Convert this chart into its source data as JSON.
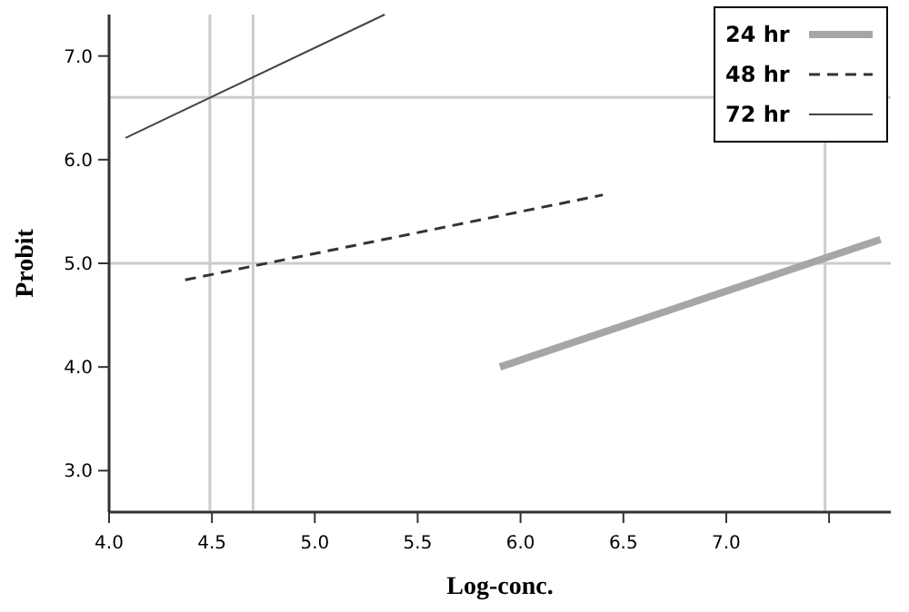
{
  "chart_data": {
    "type": "line",
    "xlabel": "Log-conc.",
    "ylabel": "Probit",
    "xlim": [
      4.0,
      7.8
    ],
    "xticks": [
      {
        "value": 4,
        "label": "4.0"
      },
      4.5,
      {
        "value": 5,
        "label": "5.0"
      },
      5.5,
      {
        "value": 6,
        "label": "6.0"
      },
      6.5,
      {
        "value": 7,
        "label": "7.0"
      },
      {
        "value": 7.5,
        "label": null
      }
    ],
    "ylim": [
      2.6,
      7.4
    ],
    "yticks": [
      {
        "value": 3,
        "label": "3.0"
      },
      {
        "value": 4,
        "label": "4.0"
      },
      {
        "value": 5,
        "label": "5.0"
      },
      {
        "value": 6,
        "label": "6.0"
      },
      {
        "value": 7,
        "label": "7.0"
      }
    ],
    "series": [
      {
        "name": "24 hr",
        "color": "#a6a6a6",
        "line_style": "solid",
        "x": [
          5.9,
          7.75
        ],
        "values": [
          4.0,
          5.23
        ]
      },
      {
        "name": "48 hr",
        "color": "#333333",
        "line_style": "dashed",
        "x": [
          4.37,
          6.4
        ],
        "values": [
          4.84,
          5.66
        ]
      },
      {
        "name": "72 hr",
        "color": "#444444",
        "line_style": "solid",
        "x": [
          4.08,
          5.34
        ],
        "values": [
          6.21,
          7.4
        ]
      }
    ],
    "ref_lines": [
      {
        "axis": "y",
        "value": 6.6,
        "color": "#cccccc"
      },
      {
        "axis": "y",
        "value": 5.0,
        "color": "#cccccc"
      },
      {
        "axis": "x",
        "value": 4.49,
        "color": "#cccccc"
      },
      {
        "axis": "x",
        "value": 4.7,
        "color": "#cccccc"
      },
      {
        "axis": "x",
        "value": 7.48,
        "color": "#cccccc"
      }
    ],
    "grid": false,
    "legend": "top right",
    "marker": "none"
  }
}
